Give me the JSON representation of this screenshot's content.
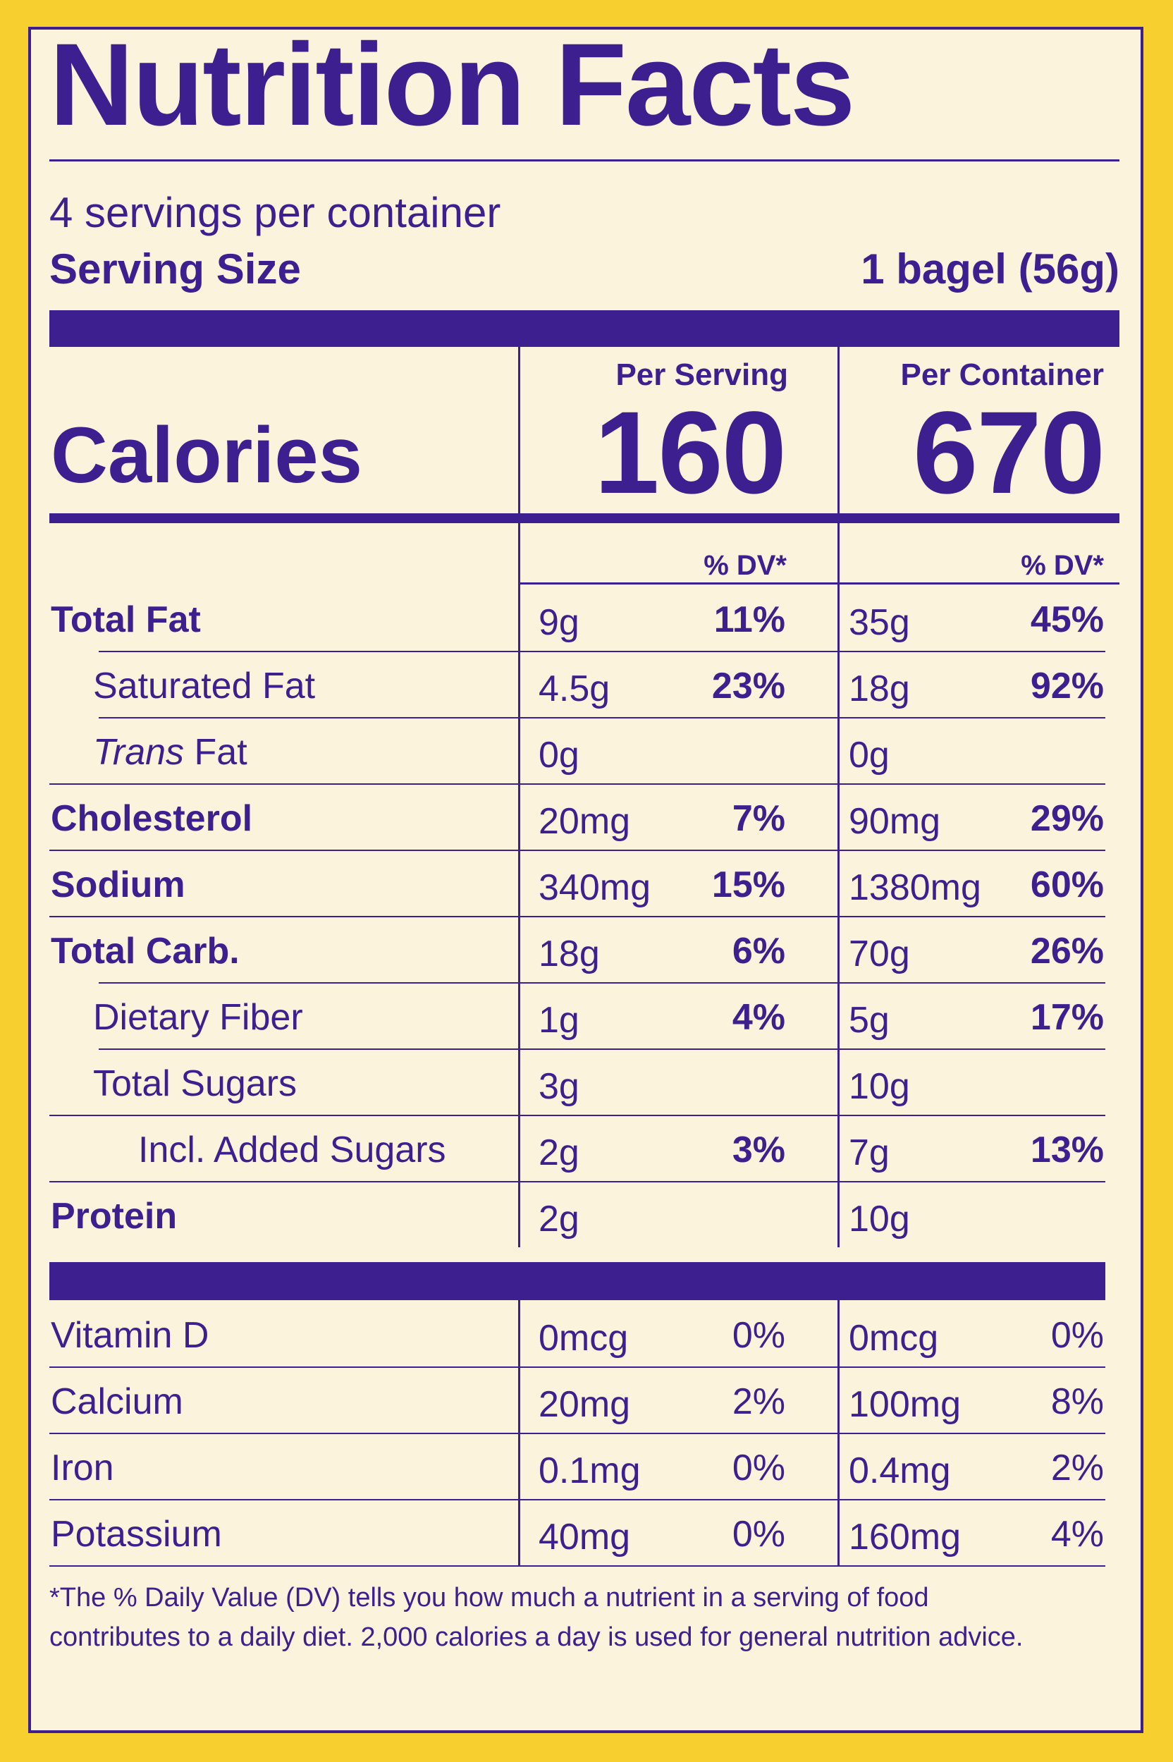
{
  "title": "Nutrition Facts",
  "servings_per_container": "4 servings per container",
  "serving_size": {
    "label": "Serving Size",
    "value": "1 bagel (56g)"
  },
  "headers": {
    "per_serving": "Per Serving",
    "per_container": "Per Container",
    "dv": "% DV*"
  },
  "calories": {
    "label": "Calories",
    "per_serving": "160",
    "per_container": "670"
  },
  "nutrients": [
    {
      "name": "Total Fat",
      "bold": true,
      "serv_amt": "9g",
      "serv_dv": "11%",
      "cont_amt": "35g",
      "cont_dv": "45%"
    },
    {
      "name": "Saturated Fat",
      "bold": false,
      "serv_amt": "4.5g",
      "serv_dv": "23%",
      "cont_amt": "18g",
      "cont_dv": "92%"
    },
    {
      "name_italic": "Trans",
      "name": " Fat",
      "bold": false,
      "serv_amt": "0g",
      "serv_dv": "",
      "cont_amt": "0g",
      "cont_dv": ""
    },
    {
      "name": "Cholesterol",
      "bold": true,
      "serv_amt": "20mg",
      "serv_dv": "7%",
      "cont_amt": "90mg",
      "cont_dv": "29%"
    },
    {
      "name": "Sodium",
      "bold": true,
      "serv_amt": "340mg",
      "serv_dv": "15%",
      "cont_amt": "1380mg",
      "cont_dv": "60%"
    },
    {
      "name": "Total Carb.",
      "bold": true,
      "serv_amt": "18g",
      "serv_dv": "6%",
      "cont_amt": "70g",
      "cont_dv": "26%"
    },
    {
      "name": "Dietary Fiber",
      "bold": false,
      "serv_amt": "1g",
      "serv_dv": "4%",
      "cont_amt": "5g",
      "cont_dv": "17%"
    },
    {
      "name": "Total Sugars",
      "bold": false,
      "serv_amt": "3g",
      "serv_dv": "",
      "cont_amt": "10g",
      "cont_dv": ""
    },
    {
      "name": "Incl. Added Sugars",
      "bold": false,
      "serv_amt": "2g",
      "serv_dv": "3%",
      "cont_amt": "7g",
      "cont_dv": "13%"
    },
    {
      "name": "Protein",
      "bold": true,
      "serv_amt": "2g",
      "serv_dv": "",
      "cont_amt": "10g",
      "cont_dv": ""
    }
  ],
  "vitamins": [
    {
      "name": "Vitamin D",
      "serv_amt": "0mcg",
      "serv_dv": "0%",
      "cont_amt": "0mcg",
      "cont_dv": "0%"
    },
    {
      "name": "Calcium",
      "serv_amt": "20mg",
      "serv_dv": "2%",
      "cont_amt": "100mg",
      "cont_dv": "8%"
    },
    {
      "name": "Iron",
      "serv_amt": "0.1mg",
      "serv_dv": "0%",
      "cont_amt": "0.4mg",
      "cont_dv": "2%"
    },
    {
      "name": "Potassium",
      "serv_amt": "40mg",
      "serv_dv": "0%",
      "cont_amt": "160mg",
      "cont_dv": "4%"
    }
  ],
  "footnote": "*The % Daily Value (DV) tells you how much a nutrient in a serving of food contributes to a daily diet. 2,000 calories a day is used for general nutrition advice.",
  "colors": {
    "ink": "#3e1f8f",
    "panel": "#fbf3dc",
    "background": "#f7cf2e"
  }
}
